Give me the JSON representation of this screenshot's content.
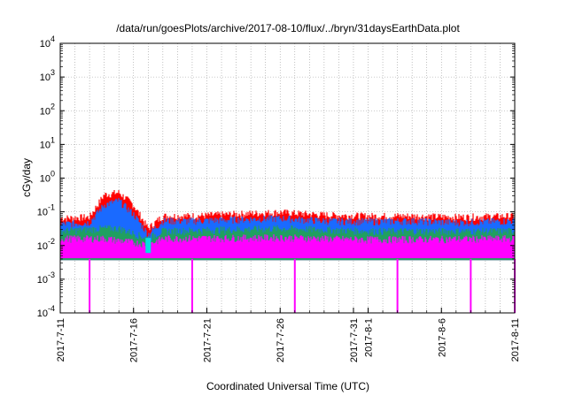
{
  "chart_data": {
    "type": "area",
    "title": "/data/run/goesPlots/archive/2017-08-10/flux/../bryn/31daysEarthData.plot",
    "xlabel": "Coordinated Universal Time (UTC)",
    "ylabel": "cGy/day",
    "y_scale": "log",
    "ylim": [
      0.0001,
      10000
    ],
    "xlim": [
      "2017-07-11",
      "2017-08-11"
    ],
    "grid": true,
    "x_ticks": [
      "2017-7-11",
      "2017-7-16",
      "2017-7-21",
      "2017-7-26",
      "2017-7-31",
      "2017-8-1",
      "2017-8-6",
      "2017-8-11"
    ],
    "x_tick_days": [
      0,
      5,
      10,
      15,
      20,
      21,
      26,
      31
    ],
    "y_ticks": [
      {
        "base": "10",
        "exp": "-4",
        "value": 0.0001
      },
      {
        "base": "10",
        "exp": "-3",
        "value": 0.001
      },
      {
        "base": "10",
        "exp": "-2",
        "value": 0.01
      },
      {
        "base": "10",
        "exp": "-1",
        "value": 0.1
      },
      {
        "base": "10",
        "exp": "0",
        "value": 1
      },
      {
        "base": "10",
        "exp": "1",
        "value": 10
      },
      {
        "base": "10",
        "exp": "2",
        "value": 100
      },
      {
        "base": "10",
        "exp": "3",
        "value": 1000
      },
      {
        "base": "10",
        "exp": "4",
        "value": 10000
      }
    ],
    "series": [
      {
        "color": "#ff0000",
        "x": [
          "2017-07-11",
          "2017-07-13",
          "2017-07-14",
          "2017-07-15",
          "2017-07-16",
          "2017-07-17",
          "2017-07-18",
          "2017-07-20",
          "2017-07-23",
          "2017-07-26",
          "2017-07-29",
          "2017-08-01",
          "2017-08-04",
          "2017-08-07",
          "2017-08-11"
        ],
        "values": [
          0.06,
          0.065,
          0.3,
          0.35,
          0.15,
          0.03,
          0.07,
          0.07,
          0.08,
          0.09,
          0.075,
          0.07,
          0.07,
          0.065,
          0.07
        ]
      },
      {
        "color": "#1a6aff",
        "x": [
          "2017-07-11",
          "2017-07-13",
          "2017-07-14",
          "2017-07-15",
          "2017-07-16",
          "2017-07-17",
          "2017-07-18",
          "2017-07-20",
          "2017-07-23",
          "2017-07-26",
          "2017-07-29",
          "2017-08-01",
          "2017-08-04",
          "2017-08-07",
          "2017-08-11"
        ],
        "values": [
          0.04,
          0.045,
          0.15,
          0.2,
          0.08,
          0.02,
          0.05,
          0.05,
          0.055,
          0.06,
          0.05,
          0.048,
          0.05,
          0.045,
          0.05
        ]
      },
      {
        "color": "#20a060",
        "x": [
          "2017-07-11",
          "2017-07-14",
          "2017-07-15",
          "2017-07-17",
          "2017-07-18",
          "2017-07-26",
          "2017-08-01",
          "2017-08-11"
        ],
        "values": [
          0.025,
          0.03,
          0.03,
          0.015,
          0.025,
          0.03,
          0.025,
          0.025
        ]
      },
      {
        "color": "#ff00ff",
        "x": [
          "2017-07-11",
          "2017-07-14",
          "2017-07-17",
          "2017-07-18",
          "2017-07-26",
          "2017-08-01",
          "2017-08-11"
        ],
        "values": [
          0.015,
          0.015,
          0.01,
          0.015,
          0.016,
          0.014,
          0.015
        ],
        "floor": 0.004,
        "dips": [
          "2017-07-13",
          "2017-07-20",
          "2017-07-27",
          "2017-08-03",
          "2017-08-08",
          "2017-08-11"
        ]
      },
      {
        "color": "#00e0e0",
        "x": [
          "2017-07-17"
        ],
        "values": [
          0.012
        ]
      }
    ]
  }
}
